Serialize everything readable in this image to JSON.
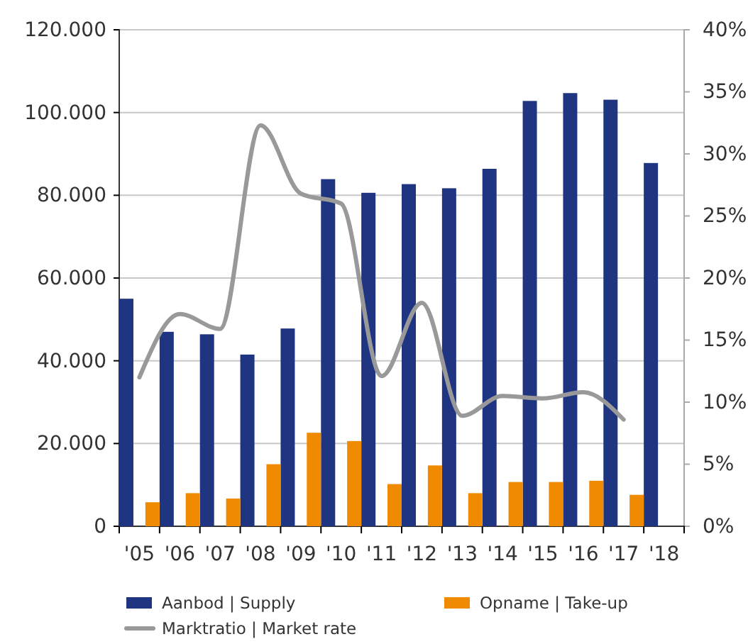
{
  "chart_data": {
    "type": "bar",
    "categories": [
      "'05",
      "'06",
      "'07",
      "'08",
      "'09",
      "'10",
      "'11",
      "'12",
      "'13",
      "'14",
      "'15",
      "'16",
      "'17",
      "'18"
    ],
    "series": [
      {
        "name": "Aanbod | Supply",
        "color": "#1f3582",
        "values": [
          55000,
          47000,
          46400,
          41500,
          47800,
          83900,
          80600,
          82700,
          81700,
          86400,
          102800,
          104700,
          103100,
          87800
        ]
      },
      {
        "name": "Opname | Take-up",
        "color": "#f08a00",
        "values": [
          5800,
          8000,
          6700,
          15000,
          22600,
          20600,
          10200,
          14700,
          8000,
          10700,
          10700,
          11000,
          7600,
          null
        ]
      },
      {
        "name": "Marktratio | Market rate",
        "type": "line",
        "axis": "y2",
        "color": "#999999",
        "values": [
          12.0,
          17.1,
          15.9,
          32.3,
          26.8,
          26.0,
          12.1,
          18.0,
          8.9,
          10.5,
          10.3,
          10.8,
          8.6,
          null
        ]
      }
    ],
    "ylim": [
      0,
      120000
    ],
    "yticks": [
      0,
      {
        "value": 20000,
        "label": "20.000"
      },
      {
        "value": 40000,
        "label": "40.000"
      },
      {
        "value": 60000,
        "label": "60.000"
      },
      {
        "value": 80000,
        "label": "80.000"
      },
      {
        "value": 100000,
        "label": "100.000"
      },
      {
        "value": 120000,
        "label": "120.000"
      }
    ],
    "y2lim": [
      0,
      40
    ],
    "y2ticks": [
      {
        "value": 0,
        "label": "0%"
      },
      {
        "value": 5,
        "label": "5%"
      },
      {
        "value": 10,
        "label": "10%"
      },
      {
        "value": 15,
        "label": "15%"
      },
      {
        "value": 20,
        "label": "20%"
      },
      {
        "value": 25,
        "label": "25%"
      },
      {
        "value": 30,
        "label": "30%"
      },
      {
        "value": 35,
        "label": "35%"
      },
      {
        "value": 40,
        "label": "40%"
      }
    ],
    "grid": "y",
    "legend": "bottom",
    "line_style": "solid",
    "marker": "none"
  }
}
